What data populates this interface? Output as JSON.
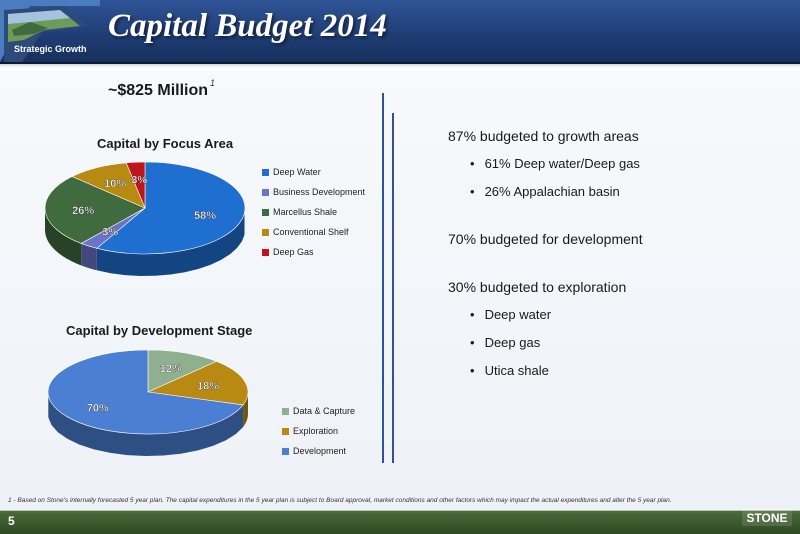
{
  "header": {
    "title": "Capital Budget 2014",
    "badge_text": "Strategic Growth"
  },
  "budget": {
    "total": "~$825 Million",
    "footnote_ref": "1"
  },
  "chart_data": [
    {
      "type": "pie",
      "title": "Capital by Focus Area",
      "categories": [
        "Deep Water",
        "Business Development",
        "Marcellus Shale",
        "Conventional Shelf",
        "Deep Gas"
      ],
      "values": [
        58,
        3,
        26,
        10,
        3
      ],
      "labels": [
        "58%",
        "3%",
        "26%",
        "10%",
        "3%"
      ],
      "colors": [
        "#1f6fd1",
        "#6b73c8",
        "#3f6b3f",
        "#b88a12",
        "#c0141c"
      ],
      "legend": "right"
    },
    {
      "type": "pie",
      "title": "Capital by Development Stage",
      "categories": [
        "Data & Capture",
        "Exploration",
        "Development"
      ],
      "values": [
        12,
        18,
        70
      ],
      "labels": [
        "12%",
        "18%",
        "70%"
      ],
      "colors": [
        "#8fb08e",
        "#b88a12",
        "#4a7fd4"
      ],
      "legend": "right"
    }
  ],
  "highlights": [
    {
      "text": "87% budgeted to growth areas",
      "subs": [
        "61% Deep water/Deep gas",
        "26% Appalachian basin"
      ]
    },
    {
      "text": "70% budgeted for development",
      "subs": []
    },
    {
      "text": "30% budgeted to exploration",
      "subs": [
        "Deep water",
        "Deep gas",
        "Utica shale"
      ]
    }
  ],
  "footnote": "1 - Based on Stone's internally forecasted 5 year plan. The capital expenditures in the 5 year plan is subject to Board approval, market conditions and other factors which may impact the actual expenditures and alter the 5 year plan.",
  "footer": {
    "page_number": "5",
    "logo_text": "STONE"
  }
}
